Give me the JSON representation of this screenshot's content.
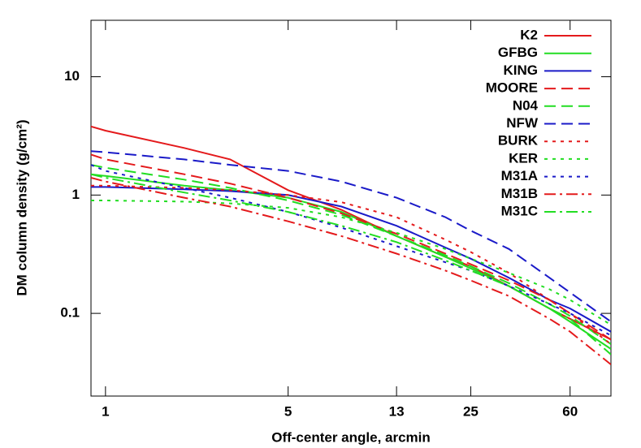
{
  "chart_data": {
    "type": "line",
    "x_label": "Off-center angle, arcmin",
    "y_label": "DM column density (g/cm²)",
    "x_log": true,
    "y_log": true,
    "legend": "top-right",
    "xlim": [
      0.88,
      86
    ],
    "ylim": [
      0.02,
      30
    ],
    "xticks": [
      1,
      5,
      13,
      25,
      60
    ],
    "yticks": [
      0.1,
      1,
      10
    ],
    "x": [
      0.88,
      1,
      2,
      3,
      5,
      8,
      13,
      20,
      25,
      35,
      50,
      60,
      86
    ],
    "series": [
      {
        "name": "K2",
        "color": "#e41a1c",
        "dash": "solid",
        "values": [
          3.8,
          3.5,
          2.5,
          2.0,
          1.1,
          0.75,
          0.45,
          0.3,
          0.25,
          0.17,
          0.11,
          0.09,
          0.06
        ]
      },
      {
        "name": "GFBG",
        "color": "#22dd22",
        "dash": "solid",
        "values": [
          1.5,
          1.45,
          1.2,
          1.1,
          0.95,
          0.72,
          0.45,
          0.3,
          0.24,
          0.17,
          0.11,
          0.085,
          0.05
        ]
      },
      {
        "name": "KING",
        "color": "#1a1ac8",
        "dash": "solid",
        "values": [
          1.17,
          1.17,
          1.12,
          1.08,
          1.0,
          0.8,
          0.55,
          0.36,
          0.29,
          0.2,
          0.13,
          0.11,
          0.07
        ]
      },
      {
        "name": "MOORE",
        "color": "#e41a1c",
        "dash": "dashed",
        "values": [
          2.2,
          2.0,
          1.5,
          1.25,
          0.95,
          0.7,
          0.47,
          0.32,
          0.26,
          0.19,
          0.13,
          0.1,
          0.06
        ]
      },
      {
        "name": "N04",
        "color": "#22dd22",
        "dash": "dashed",
        "values": [
          1.8,
          1.7,
          1.35,
          1.15,
          0.9,
          0.68,
          0.45,
          0.31,
          0.25,
          0.18,
          0.12,
          0.095,
          0.055
        ]
      },
      {
        "name": "NFW",
        "color": "#1a1ac8",
        "dash": "dashed",
        "values": [
          2.35,
          2.3,
          2.0,
          1.8,
          1.6,
          1.3,
          0.95,
          0.65,
          0.5,
          0.35,
          0.2,
          0.15,
          0.085
        ]
      },
      {
        "name": "BURK",
        "color": "#e41a1c",
        "dash": "dotted",
        "values": [
          1.2,
          1.2,
          1.15,
          1.1,
          1.0,
          0.87,
          0.65,
          0.42,
          0.33,
          0.22,
          0.13,
          0.1,
          0.055
        ]
      },
      {
        "name": "KER",
        "color": "#22dd22",
        "dash": "dotted",
        "values": [
          0.9,
          0.9,
          0.88,
          0.85,
          0.78,
          0.65,
          0.48,
          0.35,
          0.29,
          0.22,
          0.16,
          0.13,
          0.08
        ]
      },
      {
        "name": "M31A",
        "color": "#1a1ac8",
        "dash": "dotted",
        "values": [
          1.8,
          1.6,
          1.15,
          0.95,
          0.72,
          0.53,
          0.37,
          0.27,
          0.23,
          0.17,
          0.12,
          0.1,
          0.065
        ]
      },
      {
        "name": "M31B",
        "color": "#e41a1c",
        "dash": "dashdot",
        "values": [
          1.4,
          1.3,
          0.95,
          0.8,
          0.6,
          0.45,
          0.32,
          0.23,
          0.19,
          0.14,
          0.09,
          0.07,
          0.037
        ]
      },
      {
        "name": "M31C",
        "color": "#22dd22",
        "dash": "dashdot",
        "values": [
          1.5,
          1.4,
          1.05,
          0.9,
          0.72,
          0.55,
          0.4,
          0.28,
          0.23,
          0.17,
          0.11,
          0.09,
          0.045
        ]
      }
    ]
  }
}
